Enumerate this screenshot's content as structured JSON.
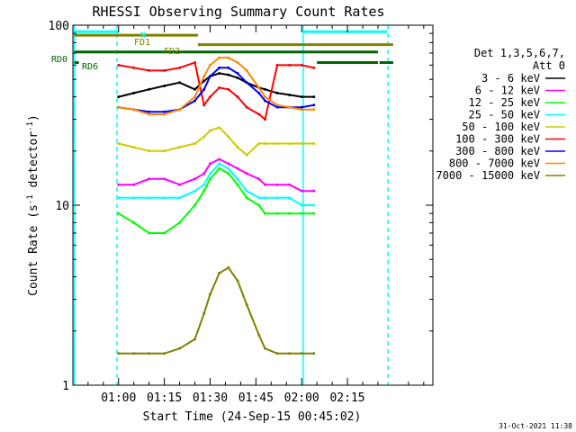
{
  "chart_data": {
    "type": "line",
    "title": "RHESSI Observing Summary Count Rates",
    "xlabel": "Start Time (24-Sep-15 00:45:02)",
    "ylabel": "Count Rate (s",
    "ylabel_sup": "-1",
    "ylabel_tail": " detector",
    "ylabel_end": ")",
    "yscale": "log",
    "ylim": [
      1,
      100
    ],
    "xlim_minutes": [
      45.03,
      163.0
    ],
    "x_ticks": [
      {
        "t": 60,
        "label": "01:00"
      },
      {
        "t": 75,
        "label": "01:15"
      },
      {
        "t": 90,
        "label": "01:30"
      },
      {
        "t": 105,
        "label": "01:45"
      },
      {
        "t": 120,
        "label": "02:00"
      },
      {
        "t": 135,
        "label": "02:15"
      }
    ],
    "y_ticks": [
      {
        "v": 1,
        "label": "1"
      },
      {
        "v": 10,
        "label": "10"
      },
      {
        "v": 100,
        "label": "100"
      }
    ],
    "legend_title": [
      "Det 1,3,5,6,7,",
      "Att 0"
    ],
    "legend_placement": "right",
    "timestamp": "31-Oct-2021 11:38",
    "series": [
      {
        "name": "3 - 6 keV",
        "color": "#000000",
        "x": [
          60,
          65,
          70,
          75,
          80,
          85,
          88,
          90,
          93,
          96,
          99,
          102,
          106,
          108,
          112,
          116,
          120,
          124
        ],
        "values": [
          40,
          42,
          44,
          46,
          48,
          44,
          49,
          52,
          54,
          53,
          51,
          48,
          45,
          44,
          42,
          41,
          40,
          40
        ]
      },
      {
        "name": "6 - 12 keV",
        "color": "#ff00ff",
        "x": [
          60,
          65,
          70,
          75,
          80,
          85,
          88,
          90,
          93,
          96,
          99,
          102,
          106,
          108,
          112,
          116,
          120,
          124
        ],
        "values": [
          13,
          13,
          14,
          14,
          13,
          14,
          15,
          17,
          18,
          17,
          16,
          15,
          14,
          13,
          13,
          13,
          12,
          12
        ]
      },
      {
        "name": "12 - 25 keV",
        "color": "#00ff00",
        "x": [
          60,
          65,
          70,
          75,
          80,
          85,
          88,
          90,
          93,
          96,
          99,
          102,
          106,
          108,
          112,
          116,
          120,
          124
        ],
        "values": [
          9,
          8,
          7,
          7,
          8,
          10,
          12,
          14,
          16,
          15,
          13,
          11,
          10,
          9,
          9,
          9,
          9,
          9
        ]
      },
      {
        "name": "25 - 50 keV",
        "color": "#00ffff",
        "x": [
          60,
          65,
          70,
          75,
          80,
          85,
          88,
          90,
          93,
          96,
          99,
          102,
          106,
          108,
          112,
          116,
          120,
          124
        ],
        "values": [
          11,
          11,
          11,
          11,
          11,
          12,
          13,
          15,
          17,
          16,
          14,
          12,
          11,
          11,
          11,
          11,
          10,
          10
        ]
      },
      {
        "name": "50 - 100 keV",
        "color": "#cccc00",
        "x": [
          60,
          65,
          70,
          75,
          80,
          85,
          88,
          90,
          93,
          96,
          99,
          102,
          106,
          108,
          112,
          116,
          120,
          124
        ],
        "values": [
          22,
          21,
          20,
          20,
          21,
          22,
          24,
          26,
          27,
          24,
          21,
          19,
          22,
          22,
          22,
          22,
          22,
          22
        ]
      },
      {
        "name": "100 - 300 keV",
        "color": "#ff0000",
        "x": [
          60,
          65,
          70,
          75,
          80,
          85,
          88,
          90,
          93,
          96,
          99,
          102,
          106,
          108,
          112,
          116,
          120,
          124
        ],
        "values": [
          60,
          58,
          56,
          56,
          58,
          62,
          36,
          40,
          45,
          44,
          40,
          35,
          32,
          30,
          60,
          60,
          60,
          58
        ]
      },
      {
        "name": "300 - 800 keV",
        "color": "#0000ff",
        "x": [
          60,
          65,
          70,
          75,
          80,
          85,
          88,
          90,
          93,
          96,
          99,
          102,
          106,
          108,
          112,
          116,
          120,
          124
        ],
        "values": [
          35,
          34,
          33,
          33,
          34,
          38,
          44,
          52,
          58,
          58,
          54,
          48,
          42,
          38,
          35,
          35,
          35,
          36
        ]
      },
      {
        "name": "800 - 7000 keV",
        "color": "#ff8800",
        "x": [
          60,
          65,
          70,
          75,
          80,
          85,
          88,
          90,
          93,
          96,
          99,
          102,
          106,
          108,
          112,
          116,
          120,
          124
        ],
        "values": [
          35,
          34,
          32,
          32,
          34,
          40,
          52,
          60,
          66,
          66,
          62,
          56,
          45,
          40,
          36,
          35,
          34,
          34
        ]
      },
      {
        "name": "7000 - 15000 keV",
        "color": "#808000",
        "x": [
          60,
          65,
          70,
          75,
          80,
          85,
          88,
          90,
          93,
          96,
          99,
          102,
          106,
          108,
          112,
          116,
          120,
          124
        ],
        "values": [
          1.5,
          1.5,
          1.5,
          1.5,
          1.6,
          1.8,
          2.5,
          3.2,
          4.2,
          4.5,
          3.8,
          2.8,
          1.9,
          1.6,
          1.5,
          1.5,
          1.5,
          1.5
        ]
      }
    ],
    "flag_bars": [
      {
        "label": "N",
        "color": "#00ffff",
        "y": 92,
        "segments": [
          [
            45.5,
            60
          ],
          [
            120.5,
            148
          ]
        ]
      },
      {
        "label": "FD1",
        "color": "#808000",
        "y": 88,
        "segments": [
          [
            45.5,
            86
          ]
        ]
      },
      {
        "label": "FD2",
        "color": "#808000",
        "y": 78,
        "segments": [
          [
            86,
            150
          ]
        ]
      },
      {
        "label": "RD0",
        "color": "#006400",
        "y": 71,
        "segments": [
          [
            45.5,
            145
          ]
        ]
      },
      {
        "label": "RD6",
        "color": "#006400",
        "y": 62,
        "segments": [
          [
            45.5,
            47
          ],
          [
            125,
            145
          ],
          [
            145.5,
            150
          ]
        ]
      }
    ],
    "vertical_markers": [
      {
        "t": 45.5,
        "color": "#00ffff",
        "style": "solid"
      },
      {
        "t": 59.5,
        "color": "#00ffff",
        "style": "dashed"
      },
      {
        "t": 120.5,
        "color": "#00ffff",
        "style": "solid"
      },
      {
        "t": 148.3,
        "color": "#00ffff",
        "style": "dashed"
      }
    ]
  }
}
